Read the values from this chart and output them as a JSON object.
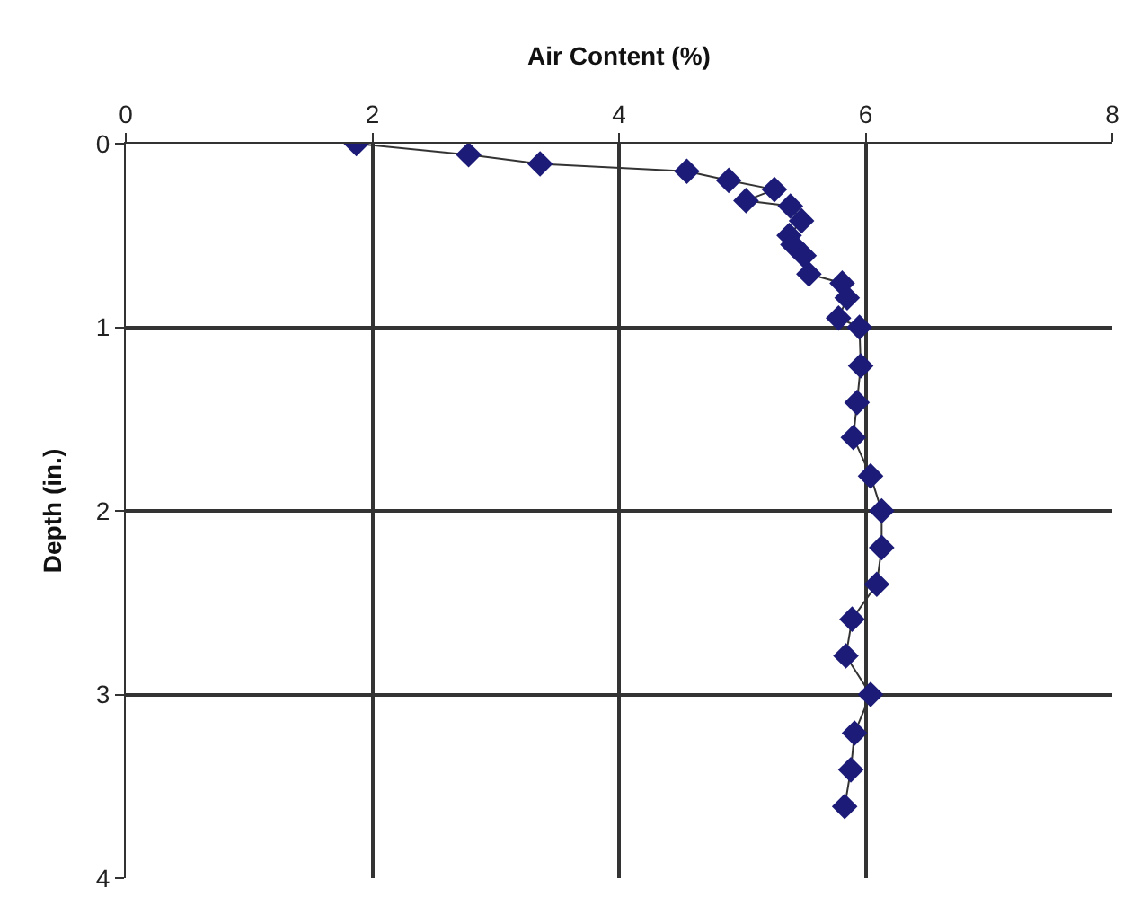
{
  "chart_data": {
    "type": "line",
    "xlabel": "Air Content (%)",
    "ylabel": "Depth (in.)",
    "x": [
      1.87,
      2.78,
      3.36,
      4.55,
      4.89,
      5.26,
      5.03,
      5.39,
      5.48,
      5.38,
      5.41,
      5.5,
      5.54,
      5.81,
      5.85,
      5.78,
      5.95,
      5.96,
      5.93,
      5.9,
      6.04,
      6.13,
      6.13,
      6.09,
      5.89,
      5.84,
      6.04,
      5.91,
      5.88,
      5.83
    ],
    "series": [
      {
        "color": "#1c1c78",
        "values": [
          0.0,
          0.06,
          0.11,
          0.15,
          0.2,
          0.25,
          0.31,
          0.34,
          0.42,
          0.5,
          0.55,
          0.61,
          0.71,
          0.76,
          0.84,
          0.95,
          1.0,
          1.21,
          1.41,
          1.6,
          1.81,
          2.0,
          2.2,
          2.4,
          2.59,
          2.79,
          3.0,
          3.21,
          3.41,
          3.61
        ]
      }
    ],
    "xlim": [
      0,
      8
    ],
    "xticks": [
      0,
      2,
      4,
      6,
      8
    ],
    "ylim": [
      4,
      0
    ],
    "yticks": [
      0,
      1,
      2,
      3,
      4
    ],
    "grid": true,
    "marker": "diamond",
    "line_style": "solid"
  }
}
